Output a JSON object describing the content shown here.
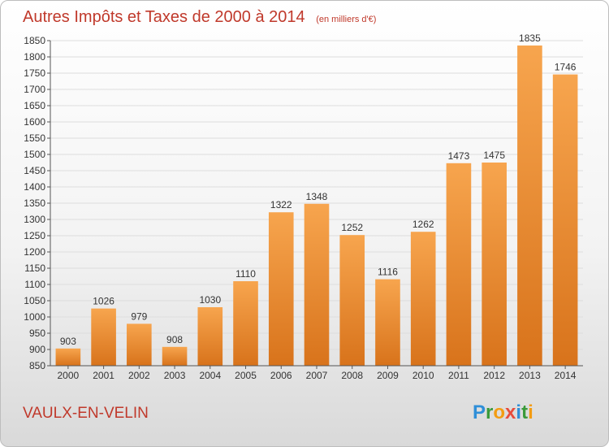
{
  "chart_data": {
    "type": "bar",
    "title": "Autres Impôts et Taxes de 2000 à 2014",
    "subtitle": "(en milliers d'€)",
    "categories": [
      "2000",
      "2001",
      "2002",
      "2003",
      "2004",
      "2005",
      "2006",
      "2007",
      "2008",
      "2009",
      "2010",
      "2011",
      "2012",
      "2013",
      "2014"
    ],
    "values": [
      903,
      1026,
      979,
      908,
      1030,
      1110,
      1322,
      1348,
      1252,
      1116,
      1262,
      1473,
      1475,
      1835,
      1746
    ],
    "ylim": [
      850,
      1850
    ],
    "ytick_step": 50,
    "xlabel": "",
    "ylabel": "",
    "grid": true,
    "colors": {
      "bar_light": "#f7a54e",
      "bar_dark": "#d8731b",
      "title": "#c0392b",
      "grid": "#dddddd"
    }
  },
  "footer": {
    "location": "VAULX-EN-VELIN",
    "brand": "Proxiti"
  }
}
